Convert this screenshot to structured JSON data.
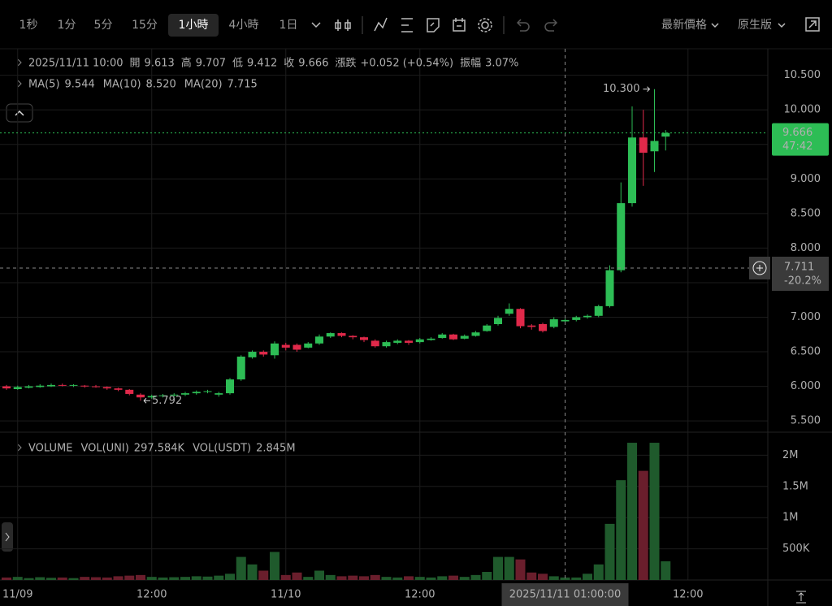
{
  "toolbar": {
    "intervals": [
      "1秒",
      "1分",
      "5分",
      "15分",
      "1小時",
      "4小時",
      "1日"
    ],
    "active": 4,
    "price_type": "最新價格",
    "version": "原生版"
  },
  "chart_data": [
    {
      "type": "candlestick",
      "legend": {
        "time": "2025/11/11 10:00",
        "items": [
          {
            "label": "開",
            "value": "9.613"
          },
          {
            "label": "高",
            "value": "9.707"
          },
          {
            "label": "低",
            "value": "9.412"
          },
          {
            "label": "收",
            "value": "9.666"
          },
          {
            "label": "漲跌",
            "value": "+0.052 (+0.54%)"
          },
          {
            "label": "振幅",
            "value": "3.07%"
          }
        ]
      },
      "ma": [
        {
          "name": "MA(5)",
          "value": "9.544",
          "color": "#f0a030"
        },
        {
          "name": "MA(10)",
          "value": "8.520",
          "color": "#e0406a"
        },
        {
          "name": "MA(20)",
          "value": "7.715",
          "color": "#3cb4e6"
        }
      ],
      "categories": [
        null,
        "11/09",
        null,
        null,
        null,
        null,
        null,
        null,
        null,
        null,
        null,
        null,
        null,
        "12:00",
        null,
        null,
        null,
        null,
        null,
        null,
        null,
        null,
        null,
        null,
        null,
        "11/10",
        null,
        null,
        null,
        null,
        null,
        null,
        null,
        null,
        null,
        null,
        null,
        "12:00",
        null,
        null,
        null,
        null,
        null,
        null,
        null,
        null,
        null,
        null,
        null,
        null,
        null,
        null,
        null,
        null,
        null,
        null,
        null,
        null,
        null,
        null,
        null,
        "12:00"
      ],
      "open": [
        6.0,
        5.96,
        5.98,
        5.99,
        6.0,
        6.02,
        6.01,
        6.01,
        6.0,
        5.99,
        5.97,
        5.95,
        5.88,
        5.84,
        5.86,
        5.87,
        5.88,
        5.9,
        5.92,
        5.88,
        5.9,
        6.1,
        6.42,
        6.5,
        6.45,
        6.6,
        6.6,
        6.56,
        6.62,
        6.72,
        6.77,
        6.73,
        6.71,
        6.66,
        6.58,
        6.63,
        6.66,
        6.64,
        6.67,
        6.7,
        6.75,
        6.69,
        6.73,
        6.8,
        6.9,
        7.05,
        7.12,
        6.88,
        6.9,
        6.86,
        6.94,
        6.96,
        7.0,
        7.02,
        7.16,
        7.68,
        8.65,
        9.6,
        9.4,
        9.613,
        null,
        null
      ],
      "high": [
        6.02,
        6.01,
        6.02,
        6.03,
        6.04,
        6.04,
        6.03,
        6.02,
        6.02,
        6.0,
        5.98,
        5.96,
        5.9,
        5.88,
        5.89,
        5.9,
        5.92,
        5.94,
        5.95,
        5.92,
        6.12,
        6.45,
        6.52,
        6.52,
        6.65,
        6.63,
        6.62,
        6.64,
        6.75,
        6.78,
        6.78,
        6.74,
        6.72,
        6.68,
        6.66,
        6.68,
        6.67,
        6.7,
        6.71,
        6.77,
        6.76,
        6.75,
        6.8,
        6.9,
        7.02,
        7.2,
        7.13,
        6.9,
        6.92,
        7.0,
        6.98,
        7.02,
        7.04,
        7.18,
        7.75,
        8.95,
        10.05,
        10.0,
        10.3,
        9.707,
        null,
        null
      ],
      "low": [
        5.95,
        5.95,
        5.97,
        5.98,
        5.99,
        6.0,
        5.99,
        5.98,
        5.98,
        5.95,
        5.93,
        5.87,
        5.792,
        5.82,
        5.84,
        5.85,
        5.86,
        5.88,
        5.9,
        5.85,
        5.88,
        6.08,
        6.4,
        6.43,
        6.4,
        6.52,
        6.5,
        6.55,
        6.6,
        6.7,
        6.71,
        6.68,
        6.64,
        6.56,
        6.56,
        6.61,
        6.6,
        6.62,
        6.66,
        6.69,
        6.67,
        6.68,
        6.72,
        6.79,
        6.88,
        7.02,
        6.84,
        6.82,
        6.78,
        6.84,
        6.92,
        6.94,
        6.98,
        7.0,
        7.14,
        7.65,
        8.6,
        8.9,
        9.1,
        9.412,
        null,
        null
      ],
      "close": [
        5.97,
        5.99,
        6.0,
        6.01,
        6.02,
        6.01,
        6.02,
        6.0,
        5.99,
        5.97,
        5.95,
        5.89,
        5.84,
        5.86,
        5.87,
        5.88,
        5.9,
        5.92,
        5.93,
        5.9,
        6.1,
        6.43,
        6.5,
        6.46,
        6.62,
        6.56,
        6.53,
        6.62,
        6.72,
        6.77,
        6.73,
        6.71,
        6.67,
        6.58,
        6.64,
        6.66,
        6.63,
        6.68,
        6.69,
        6.75,
        6.68,
        6.73,
        6.78,
        6.88,
        6.99,
        7.12,
        6.87,
        6.86,
        6.8,
        6.97,
        6.96,
        7.0,
        7.02,
        7.16,
        7.68,
        8.65,
        9.6,
        9.38,
        9.55,
        9.666,
        null,
        null
      ],
      "up_color": "#2dbd55",
      "down_color": "#e0294a",
      "ylim": [
        5.337,
        10.884
      ],
      "yticks": [
        {
          "value": 5.5,
          "label": "5.500"
        },
        {
          "value": 6,
          "label": "6.000"
        },
        {
          "value": 6.5,
          "label": "6.500"
        },
        {
          "value": 7,
          "label": "7.000"
        },
        {
          "value": 7.5,
          "label": "7.500"
        },
        {
          "value": 8,
          "label": "8.000"
        },
        {
          "value": 8.5,
          "label": "8.500"
        },
        {
          "value": 9,
          "label": "9.000"
        },
        {
          "value": 9.5,
          "label": "9.500"
        },
        {
          "value": 10,
          "label": "10.000"
        },
        {
          "value": 10.5,
          "label": "10.500"
        }
      ],
      "max_marker": {
        "value": 10.3,
        "label": "10.300"
      },
      "min_marker": {
        "value": 5.792,
        "label": "5.792"
      },
      "last_price": {
        "value": 9.666,
        "label": "9.666",
        "countdown": "47:42"
      },
      "crosshair": {
        "index": 50,
        "price": 7.711,
        "change": "-20.2%",
        "time": "2025/11/11 01:00:00"
      },
      "grid": true
    },
    {
      "type": "bar",
      "legend": {
        "title": "VOLUME",
        "items": [
          {
            "label": "VOL(UNI)",
            "value": "297.584K"
          },
          {
            "label": "VOL(USDT)",
            "value": "2.845M"
          }
        ]
      },
      "values": [
        40000,
        50000,
        30000,
        45000,
        35000,
        40000,
        30000,
        50000,
        45000,
        40000,
        60000,
        70000,
        80000,
        50000,
        40000,
        45000,
        50000,
        60000,
        55000,
        70000,
        100000,
        370000,
        250000,
        150000,
        450000,
        80000,
        120000,
        50000,
        150000,
        80000,
        60000,
        70000,
        60000,
        80000,
        50000,
        40000,
        60000,
        50000,
        40000,
        60000,
        70000,
        50000,
        80000,
        130000,
        370000,
        370000,
        330000,
        120000,
        100000,
        60000,
        40000,
        40000,
        100000,
        250000,
        900000,
        1600000,
        2200000,
        1750000,
        2200000,
        300000,
        null,
        null
      ],
      "up_color": "#1f5a2c",
      "down_color": "#6a1e2c",
      "ylim": [
        0,
        2370000
      ],
      "yticks": [
        {
          "value": 500000,
          "label": "500K"
        },
        {
          "value": 1000000,
          "label": "1M"
        },
        {
          "value": 1500000,
          "label": "1.5M"
        },
        {
          "value": 2000000,
          "label": "2M"
        }
      ]
    }
  ]
}
